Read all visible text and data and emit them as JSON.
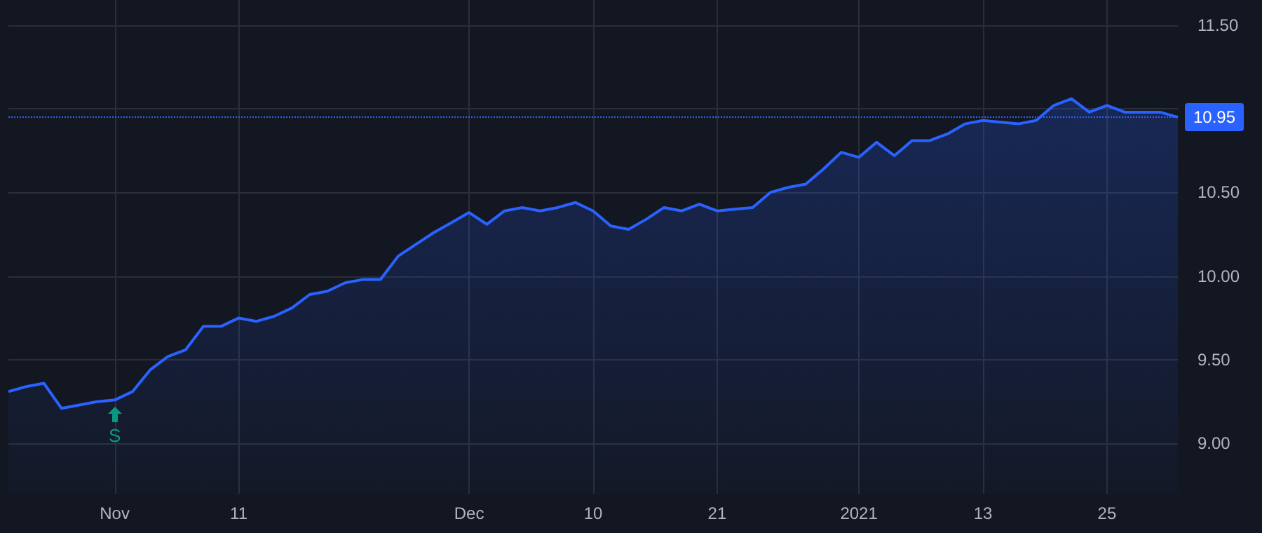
{
  "chart_data": {
    "type": "area",
    "color": "#2962ff",
    "categories": [
      null,
      null,
      null,
      null,
      null,
      null,
      "Nov",
      null,
      null,
      null,
      null,
      null,
      null,
      "11",
      null,
      null,
      null,
      null,
      null,
      null,
      null,
      null,
      null,
      null,
      null,
      null,
      "Dec",
      null,
      null,
      null,
      null,
      null,
      null,
      "10",
      null,
      null,
      null,
      null,
      null,
      null,
      "21",
      null,
      null,
      null,
      null,
      null,
      null,
      null,
      "2021",
      null,
      null,
      null,
      null,
      null,
      null,
      "13",
      null,
      null,
      null,
      null,
      null,
      null,
      "25",
      null,
      null,
      null,
      null
    ],
    "values": [
      9.31,
      9.34,
      9.36,
      9.21,
      9.23,
      9.25,
      9.26,
      9.31,
      9.44,
      9.52,
      9.56,
      9.7,
      9.7,
      9.75,
      9.73,
      9.76,
      9.81,
      9.89,
      9.91,
      9.96,
      9.98,
      9.98,
      10.12,
      10.19,
      10.26,
      10.32,
      10.38,
      10.31,
      10.39,
      10.41,
      10.39,
      10.41,
      10.44,
      10.39,
      10.3,
      10.28,
      10.34,
      10.41,
      10.39,
      10.43,
      10.39,
      10.4,
      10.41,
      10.5,
      10.53,
      10.55,
      10.64,
      10.74,
      10.71,
      10.8,
      10.72,
      10.81,
      10.81,
      10.85,
      10.91,
      10.93,
      10.92,
      10.91,
      10.93,
      11.02,
      11.06,
      10.98,
      11.02,
      10.98,
      10.98,
      10.98,
      10.95
    ],
    "ylim": [
      8.7,
      11.65
    ],
    "yticks": [
      {
        "value": 9,
        "label": "9.00"
      },
      {
        "value": 9.5,
        "label": "9.50"
      },
      {
        "value": 10,
        "label": "10.00"
      },
      {
        "value": 10.5,
        "label": "10.50"
      },
      {
        "value": 11,
        "label": null
      },
      {
        "value": 11.5,
        "label": "11.50"
      }
    ],
    "ref_lines": [
      {
        "axis": "y",
        "value": 10.95,
        "label": "10.95",
        "color": "#2962ff",
        "line_style": "dotted"
      }
    ],
    "annotations": [
      {
        "text": "S",
        "x": "Nov",
        "y": 9.26
      }
    ],
    "grid": true
  }
}
